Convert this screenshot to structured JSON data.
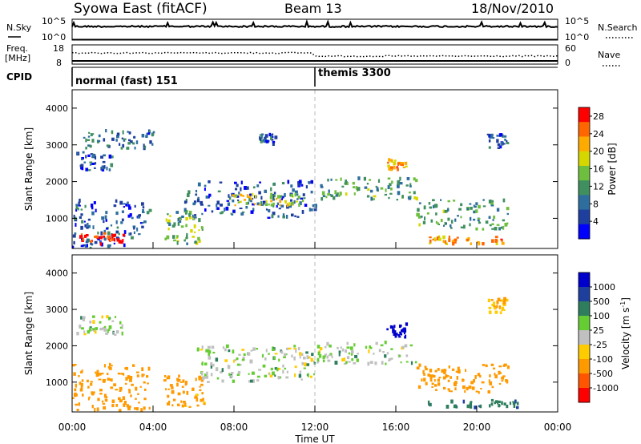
{
  "header": {
    "title": "Syowa East (fitACF)",
    "beam": "Beam 13",
    "date": "18/Nov/2010"
  },
  "noise_panel": {
    "left_label": "N.Sky",
    "right_label": "N.Search",
    "left_ticks": [
      "10^5",
      "10^0"
    ],
    "right_ticks": [
      "10^5",
      "10^0"
    ]
  },
  "freq_panel": {
    "left_label_1": "Freq.",
    "left_label_2": "[MHz]",
    "right_label": "Nave",
    "left_ticks": [
      "18",
      "8"
    ],
    "right_ticks": [
      "60",
      "0"
    ]
  },
  "cpid_panel": {
    "label": "CPID",
    "modes": [
      {
        "name": "normal (fast) 151",
        "start_hour": 0
      },
      {
        "name": "themis 3300",
        "start_hour": 12
      }
    ]
  },
  "time_axis": {
    "label": "Time UT",
    "ticks": [
      "00:00",
      "04:00",
      "08:00",
      "12:00",
      "16:00",
      "20:00",
      "00:00"
    ]
  },
  "colors": {
    "power": [
      "#0000ff",
      "#1f3f9f",
      "#2e6e9e",
      "#3f8f5f",
      "#6fbf3f",
      "#d7d700",
      "#ffaa00",
      "#ff6600",
      "#ff0000"
    ],
    "velocity": [
      "#0000cc",
      "#1f3f9f",
      "#2e7e5e",
      "#66cc33",
      "#c0c0c0",
      "#ffcc00",
      "#ff9900",
      "#ff5500",
      "#ff0000"
    ]
  },
  "chart_data": [
    {
      "type": "heatmap",
      "name": "power",
      "ylabel": "Slant Range [km]",
      "ylim": [
        180,
        4500
      ],
      "y_ticks": [
        1000,
        2000,
        3000,
        4000
      ],
      "xlim_hours": [
        0,
        24
      ],
      "colorbar": {
        "label": "Power [dB]",
        "ticks": [
          "4",
          "8",
          "12",
          "16",
          "20",
          "24",
          "28"
        ],
        "range": [
          0,
          30
        ]
      },
      "regions": [
        {
          "x0": 0.0,
          "x1": 3.8,
          "y0": 200,
          "y1": 1500,
          "level": 6
        },
        {
          "x0": 0.3,
          "x1": 2.5,
          "y0": 300,
          "y1": 600,
          "level": 28
        },
        {
          "x0": 0.2,
          "x1": 2.0,
          "y0": 2300,
          "y1": 2800,
          "level": 6
        },
        {
          "x0": 0.5,
          "x1": 4.0,
          "y0": 2900,
          "y1": 3400,
          "level": 8
        },
        {
          "x0": 4.5,
          "x1": 6.5,
          "y0": 300,
          "y1": 1200,
          "level": 14
        },
        {
          "x0": 5.5,
          "x1": 12.0,
          "y0": 1000,
          "y1": 2000,
          "level": 6
        },
        {
          "x0": 7.8,
          "x1": 11.5,
          "y0": 1350,
          "y1": 1650,
          "level": 18
        },
        {
          "x0": 9.2,
          "x1": 10.0,
          "y0": 3000,
          "y1": 3300,
          "level": 6
        },
        {
          "x0": 12.0,
          "x1": 17.0,
          "y0": 1500,
          "y1": 2100,
          "level": 12
        },
        {
          "x0": 15.5,
          "x1": 16.5,
          "y0": 2300,
          "y1": 2600,
          "level": 24
        },
        {
          "x0": 17.0,
          "x1": 21.5,
          "y0": 700,
          "y1": 1500,
          "level": 12
        },
        {
          "x0": 17.5,
          "x1": 22.0,
          "y0": 300,
          "y1": 500,
          "level": 22
        },
        {
          "x0": 20.5,
          "x1": 21.5,
          "y0": 2900,
          "y1": 3300,
          "level": 6
        }
      ]
    },
    {
      "type": "heatmap",
      "name": "velocity",
      "ylabel": "Slant Range [km]",
      "ylim": [
        180,
        4500
      ],
      "y_ticks": [
        1000,
        2000,
        3000,
        4000
      ],
      "xlim_hours": [
        0,
        24
      ],
      "colorbar": {
        "label": "Velocity [m s^-1]",
        "ticks": [
          "1000",
          "500",
          "100",
          "25",
          "-25",
          "-100",
          "-500",
          "-1000"
        ],
        "range": [
          -1000,
          1000
        ]
      },
      "regions": [
        {
          "x0": 0.0,
          "x1": 3.8,
          "y0": 200,
          "y1": 1500,
          "level": -300
        },
        {
          "x0": 0.2,
          "x1": 2.5,
          "y0": 2300,
          "y1": 2800,
          "level": 0
        },
        {
          "x0": 4.5,
          "x1": 6.5,
          "y0": 300,
          "y1": 1200,
          "level": -150
        },
        {
          "x0": 6.0,
          "x1": 12.0,
          "y0": 1000,
          "y1": 2000,
          "level": 0
        },
        {
          "x0": 12.0,
          "x1": 17.0,
          "y0": 1500,
          "y1": 2100,
          "level": 0
        },
        {
          "x0": 15.5,
          "x1": 16.5,
          "y0": 2200,
          "y1": 2600,
          "level": 900
        },
        {
          "x0": 17.0,
          "x1": 21.5,
          "y0": 700,
          "y1": 1500,
          "level": -200
        },
        {
          "x0": 17.5,
          "x1": 22.0,
          "y0": 300,
          "y1": 500,
          "level": 80
        },
        {
          "x0": 20.5,
          "x1": 21.5,
          "y0": 2900,
          "y1": 3300,
          "level": -100
        }
      ]
    }
  ]
}
